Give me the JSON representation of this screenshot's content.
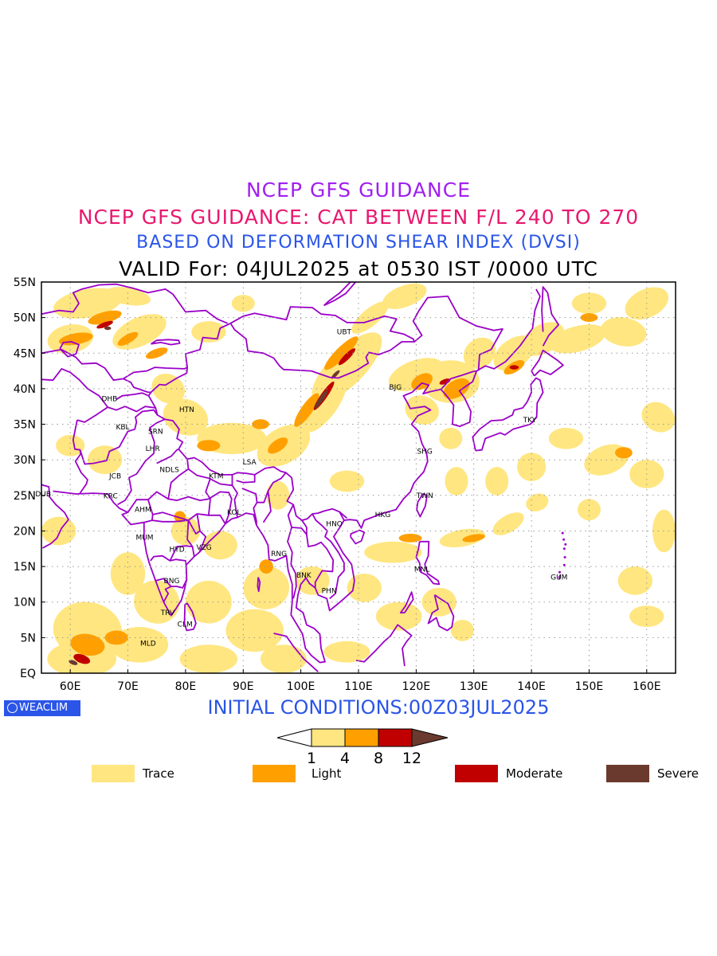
{
  "titles": {
    "line1": "NCEP GFS GUIDANCE",
    "line2": "NCEP GFS GUIDANCE: CAT BETWEEN F/L 240 TO 270",
    "line3": "BASED ON DEFORMATION SHEAR INDEX (DVSI)",
    "line4": "VALID For: 04JUL2025 at 0530 IST /0000 UTC"
  },
  "map": {
    "lon_range": [
      55,
      165
    ],
    "lat_range": [
      0,
      55
    ],
    "lon_ticks": [
      {
        "lon": 60,
        "label": "60E"
      },
      {
        "lon": 70,
        "label": "70E"
      },
      {
        "lon": 80,
        "label": "80E"
      },
      {
        "lon": 90,
        "label": "90E"
      },
      {
        "lon": 100,
        "label": "100E"
      },
      {
        "lon": 110,
        "label": "110E"
      },
      {
        "lon": 120,
        "label": "120E"
      },
      {
        "lon": 130,
        "label": "130E"
      },
      {
        "lon": 140,
        "label": "140E"
      },
      {
        "lon": 150,
        "label": "150E"
      },
      {
        "lon": 160,
        "label": "160E"
      }
    ],
    "lat_ticks": [
      {
        "lat": 55,
        "label": "55N"
      },
      {
        "lat": 50,
        "label": "50N"
      },
      {
        "lat": 45,
        "label": "45N"
      },
      {
        "lat": 40,
        "label": "40N"
      },
      {
        "lat": 35,
        "label": "35N"
      },
      {
        "lat": 30,
        "label": "30N"
      },
      {
        "lat": 25,
        "label": "25N"
      },
      {
        "lat": 20,
        "label": "20N"
      },
      {
        "lat": 15,
        "label": "15N"
      },
      {
        "lat": 10,
        "label": "10N"
      },
      {
        "lat": 5,
        "label": "5N"
      },
      {
        "lat": 0,
        "label": "EQ"
      }
    ],
    "stations": [
      {
        "code": "UBT",
        "lon": 107.5,
        "lat": 48.0
      },
      {
        "code": "BJG",
        "lon": 116.4,
        "lat": 40.2
      },
      {
        "code": "DHB",
        "lon": 66.8,
        "lat": 38.6
      },
      {
        "code": "HTN",
        "lon": 80.2,
        "lat": 37.1
      },
      {
        "code": "KBL",
        "lon": 69.1,
        "lat": 34.6
      },
      {
        "code": "SRN",
        "lon": 74.8,
        "lat": 34.0
      },
      {
        "code": "TKY",
        "lon": 139.7,
        "lat": 35.6
      },
      {
        "code": "LHR",
        "lon": 74.3,
        "lat": 31.6
      },
      {
        "code": "SHG",
        "lon": 121.5,
        "lat": 31.2
      },
      {
        "code": "LSA",
        "lon": 91.1,
        "lat": 29.7
      },
      {
        "code": "JCB",
        "lon": 67.8,
        "lat": 27.7
      },
      {
        "code": "NDLS",
        "lon": 77.2,
        "lat": 28.6
      },
      {
        "code": "KTM",
        "lon": 85.3,
        "lat": 27.7
      },
      {
        "code": "DUB",
        "lon": 55.3,
        "lat": 25.2
      },
      {
        "code": "TWN",
        "lon": 121.5,
        "lat": 25.0
      },
      {
        "code": "KRC",
        "lon": 67.0,
        "lat": 24.9
      },
      {
        "code": "AHM",
        "lon": 72.6,
        "lat": 23.0
      },
      {
        "code": "KOL",
        "lon": 88.4,
        "lat": 22.6
      },
      {
        "code": "HKG",
        "lon": 114.2,
        "lat": 22.3
      },
      {
        "code": "HNO",
        "lon": 105.8,
        "lat": 21.0
      },
      {
        "code": "MUM",
        "lon": 72.9,
        "lat": 19.1
      },
      {
        "code": "HYD",
        "lon": 78.5,
        "lat": 17.4
      },
      {
        "code": "VZG",
        "lon": 83.2,
        "lat": 17.7
      },
      {
        "code": "RNG",
        "lon": 96.2,
        "lat": 16.8
      },
      {
        "code": "MNL",
        "lon": 121.0,
        "lat": 14.6
      },
      {
        "code": "BNK",
        "lon": 100.5,
        "lat": 13.8
      },
      {
        "code": "GUM",
        "lon": 144.8,
        "lat": 13.5
      },
      {
        "code": "BNG",
        "lon": 77.6,
        "lat": 13.0
      },
      {
        "code": "PHN",
        "lon": 104.9,
        "lat": 11.6
      },
      {
        "code": "TRV",
        "lon": 76.9,
        "lat": 8.5
      },
      {
        "code": "CLM",
        "lon": 79.9,
        "lat": 6.9
      },
      {
        "code": "MLD",
        "lon": 73.5,
        "lat": 4.2
      }
    ],
    "colors": {
      "trace": "#ffe680",
      "light": "#ffa000",
      "moderate": "#c00000",
      "severe": "#6b3a2e",
      "boundary": "#9b00c8",
      "grid": "#999999"
    }
  },
  "init_conditions": "INITIAL CONDITIONS:00Z03JUL2025",
  "badge": "WEACLIM",
  "colorbar": {
    "ticks": [
      "1",
      "4",
      "8",
      "12"
    ],
    "colors": [
      "#ffffff",
      "#ffe680",
      "#ffa000",
      "#c00000",
      "#6b3a2e"
    ]
  },
  "legend": [
    {
      "label": "Trace",
      "color": "#ffe680"
    },
    {
      "label": "Light",
      "color": "#ffa000"
    },
    {
      "label": "Moderate",
      "color": "#c00000"
    },
    {
      "label": "Severe",
      "color": "#6b3a2e"
    }
  ]
}
